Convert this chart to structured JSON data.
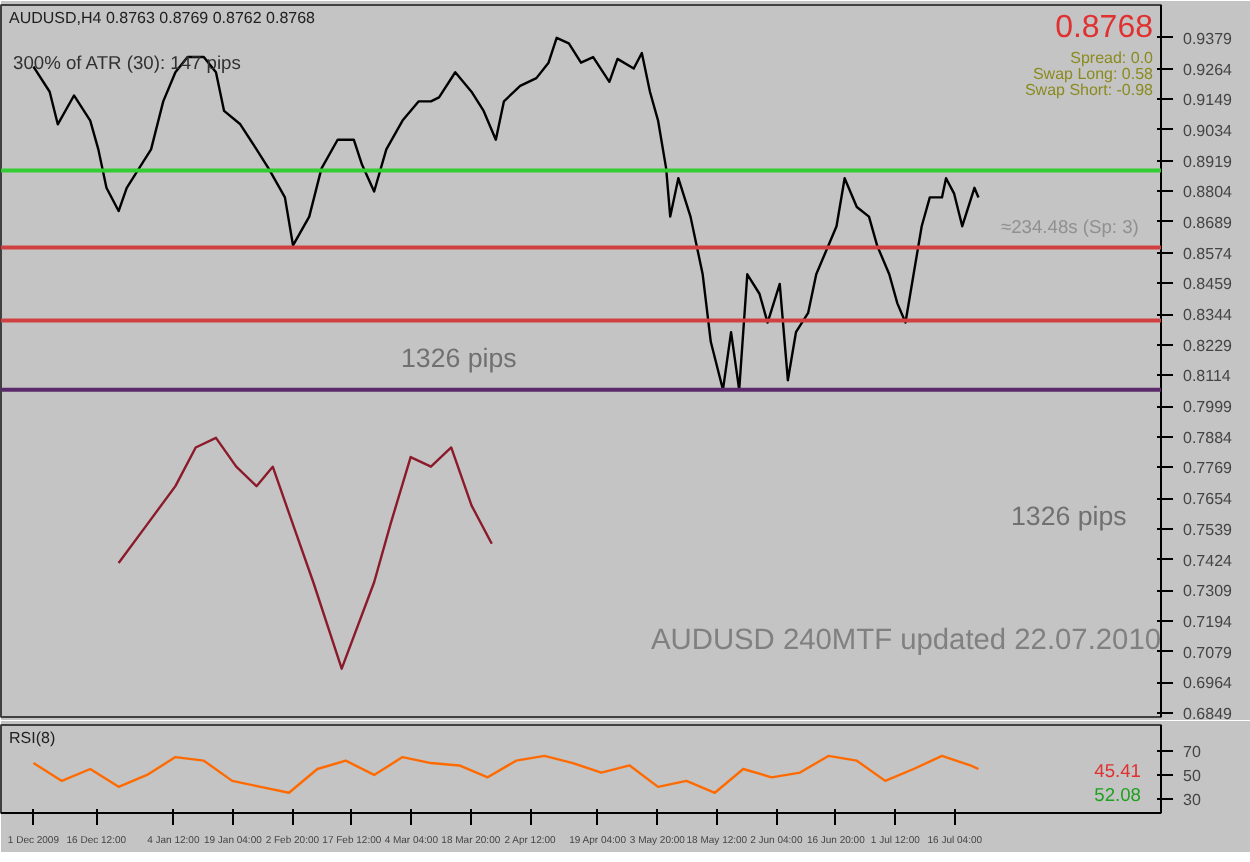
{
  "chart_data": [
    {
      "type": "line",
      "title": "AUDUSD,H4 0.8763 0.8769 0.8762 0.8768",
      "series": [
        {
          "color": "#000000",
          "x": [
            "2009-12-01",
            "2009-12-05",
            "2009-12-07",
            "2009-12-11",
            "2009-12-15",
            "2009-12-17",
            "2009-12-19",
            "2009-12-22",
            "2009-12-24",
            "2009-12-27",
            "2009-12-30",
            "2010-01-02",
            "2010-01-05",
            "2010-01-08",
            "2010-01-12",
            "2010-01-15",
            "2010-01-17",
            "2010-01-21",
            "2010-01-25",
            "2010-01-28",
            "2010-02-01",
            "2010-02-03",
            "2010-02-07",
            "2010-02-10",
            "2010-02-14",
            "2010-02-18",
            "2010-02-20",
            "2010-02-23",
            "2010-02-26",
            "2010-03-02",
            "2010-03-06",
            "2010-03-09",
            "2010-03-11",
            "2010-03-15",
            "2010-03-19",
            "2010-03-22",
            "2010-03-25",
            "2010-03-27",
            "2010-03-31",
            "2010-04-04",
            "2010-04-07",
            "2010-04-09",
            "2010-04-12",
            "2010-04-15",
            "2010-04-18",
            "2010-04-22",
            "2010-04-24",
            "2010-04-28",
            "2010-04-30",
            "2010-05-02",
            "2010-05-04",
            "2010-05-06",
            "2010-05-07",
            "2010-05-09",
            "2010-05-12",
            "2010-05-15",
            "2010-05-17",
            "2010-05-20",
            "2010-05-22",
            "2010-05-24",
            "2010-05-26",
            "2010-05-29",
            "2010-05-31",
            "2010-06-03",
            "2010-06-05",
            "2010-06-07",
            "2010-06-10",
            "2010-06-12",
            "2010-06-15",
            "2010-06-17",
            "2010-06-19",
            "2010-06-22",
            "2010-06-25",
            "2010-06-27",
            "2010-06-30",
            "2010-07-02",
            "2010-07-04",
            "2010-07-06",
            "2010-07-08",
            "2010-07-10",
            "2010-07-13",
            "2010-07-14",
            "2010-07-16",
            "2010-07-18",
            "2010-07-21",
            "2010-07-22"
          ],
          "values": [
            0.9271,
            0.9177,
            0.9055,
            0.9163,
            0.9069,
            0.8961,
            0.8817,
            0.873,
            0.8817,
            0.8889,
            0.8961,
            0.9141,
            0.925,
            0.9307,
            0.9307,
            0.925,
            0.9105,
            0.9055,
            0.8961,
            0.8889,
            0.8781,
            0.8601,
            0.8709,
            0.8889,
            0.8997,
            0.8997,
            0.8904,
            0.8803,
            0.8961,
            0.9069,
            0.9141,
            0.9141,
            0.9156,
            0.925,
            0.9177,
            0.9105,
            0.8997,
            0.9141,
            0.9199,
            0.9228,
            0.9286,
            0.9379,
            0.9358,
            0.9286,
            0.9307,
            0.9214,
            0.93,
            0.9264,
            0.9322,
            0.9177,
            0.9069,
            0.8889,
            0.8709,
            0.8853,
            0.8709,
            0.8493,
            0.824,
            0.806,
            0.8276,
            0.806,
            0.8493,
            0.842,
            0.8312,
            0.8457,
            0.8096,
            0.8276,
            0.8348,
            0.8493,
            0.8601,
            0.8673,
            0.8853,
            0.8745,
            0.8709,
            0.8601,
            0.8493,
            0.8384,
            0.8312,
            0.8493,
            0.8673,
            0.8781,
            0.8781,
            0.8853,
            0.8795,
            0.8673,
            0.8817,
            0.8781
          ]
        },
        {
          "color": "#8b1a2b",
          "x": [
            "2009-12-22",
            "2009-12-29",
            "2010-01-05",
            "2010-01-10",
            "2010-01-15",
            "2010-01-20",
            "2010-01-25",
            "2010-01-29",
            "2010-02-03",
            "2010-02-08",
            "2010-02-15",
            "2010-02-23",
            "2010-02-27",
            "2010-03-04",
            "2010-03-09",
            "2010-03-14",
            "2010-03-19",
            "2010-03-24"
          ],
          "values": [
            0.7411,
            0.7555,
            0.7699,
            0.7844,
            0.788,
            0.7772,
            0.7699,
            0.7772,
            0.7555,
            0.7339,
            0.7015,
            0.7339,
            0.7555,
            0.7808,
            0.7772,
            0.7844,
            0.7627,
            0.7483
          ]
        }
      ],
      "ref_lines": [
        {
          "axis": "y",
          "value": 0.8882,
          "color": "#33cc33"
        },
        {
          "axis": "y",
          "value": 0.8593,
          "color": "#d04040"
        },
        {
          "axis": "y",
          "value": 0.832,
          "color": "#d04040"
        },
        {
          "axis": "y",
          "value": 0.806,
          "color": "#5a2a6a"
        }
      ],
      "annotations": [
        "300% of ATR (30): 147 pips",
        "0.8768",
        "Spread: 0.0",
        "Swap Long: 0.58",
        "Swap Short: -0.98",
        "1326 pips",
        "1326 pips",
        "AUDUSD 240MTF updated 22.07.2010",
        "≈234.48s (Sp: 3)"
      ],
      "xlim": [
        "2009-11-23",
        "2010-09-05"
      ],
      "ylim": [
        0.6834,
        0.9502
      ],
      "yticks": [
        0.9379,
        0.9264,
        0.9149,
        0.9034,
        0.8919,
        0.8804,
        0.8689,
        0.8574,
        0.8459,
        0.8344,
        0.8229,
        0.8114,
        0.7999,
        0.7884,
        0.7769,
        0.7654,
        0.7539,
        0.7424,
        0.7309,
        0.7194,
        0.7079,
        0.6964,
        0.6849
      ],
      "tick_labels": "y",
      "grid": false
    },
    {
      "type": "line",
      "title": "RSI(8)",
      "series": [
        {
          "color": "#ff6a00",
          "x": [
            "2009-12-01",
            "2009-12-08",
            "2009-12-15",
            "2009-12-22",
            "2009-12-29",
            "2010-01-05",
            "2010-01-12",
            "2010-01-19",
            "2010-01-26",
            "2010-02-02",
            "2010-02-09",
            "2010-02-16",
            "2010-02-23",
            "2010-03-02",
            "2010-03-09",
            "2010-03-16",
            "2010-03-23",
            "2010-03-30",
            "2010-04-06",
            "2010-04-13",
            "2010-04-20",
            "2010-04-27",
            "2010-05-04",
            "2010-05-11",
            "2010-05-18",
            "2010-05-25",
            "2010-06-01",
            "2010-06-08",
            "2010-06-15",
            "2010-06-22",
            "2010-06-29",
            "2010-07-06",
            "2010-07-13",
            "2010-07-20",
            "2010-07-22"
          ],
          "values": [
            60,
            45,
            55,
            40,
            50,
            65,
            62,
            45,
            40,
            35,
            55,
            62,
            50,
            65,
            60,
            58,
            48,
            62,
            66,
            60,
            52,
            58,
            40,
            45,
            35,
            55,
            48,
            52,
            66,
            62,
            45,
            55,
            66,
            58,
            55
          ]
        }
      ],
      "annotations": [
        "45.41",
        "52.08"
      ],
      "xlim": [
        "2009-11-23",
        "2010-09-05"
      ],
      "ylim": [
        18,
        92
      ],
      "yticks": [
        70,
        50,
        30
      ],
      "xticks": [
        {
          "value": "2009-12-01",
          "label": "1 Dec 2009"
        },
        {
          "value": "2009-12-16T12:00",
          "label": "16 Dec 12:00"
        },
        {
          "value": "2010-01-04T12:00",
          "label": "4 Jan 12:00"
        },
        {
          "value": "2010-01-19T04:00",
          "label": "19 Jan 04:00"
        },
        {
          "value": "2010-02-02T20:00",
          "label": "2 Feb 20:00"
        },
        {
          "value": "2010-02-17T12:00",
          "label": "17 Feb 12:00"
        },
        {
          "value": "2010-03-04T04:00",
          "label": "4 Mar 04:00"
        },
        {
          "value": "2010-03-18T20:00",
          "label": "18 Mar 20:00"
        },
        {
          "value": "2010-04-02T12:00",
          "label": "2 Apr 12:00"
        },
        {
          "value": "2010-04-19T04:00",
          "label": "19 Apr 04:00"
        },
        {
          "value": "2010-05-03T20:00",
          "label": "3 May 20:00"
        },
        {
          "value": "2010-05-18T12:00",
          "label": "18 May 12:00"
        },
        {
          "value": "2010-06-02T04:00",
          "label": "2 Jun 04:00"
        },
        {
          "value": "2010-06-16T20:00",
          "label": "16 Jun 20:00"
        },
        {
          "value": "2010-07-01T12:00",
          "label": "1 Jul 12:00"
        },
        {
          "value": "2010-07-16T04:00",
          "label": "16 Jul 04:00"
        }
      ],
      "grid": false
    }
  ]
}
